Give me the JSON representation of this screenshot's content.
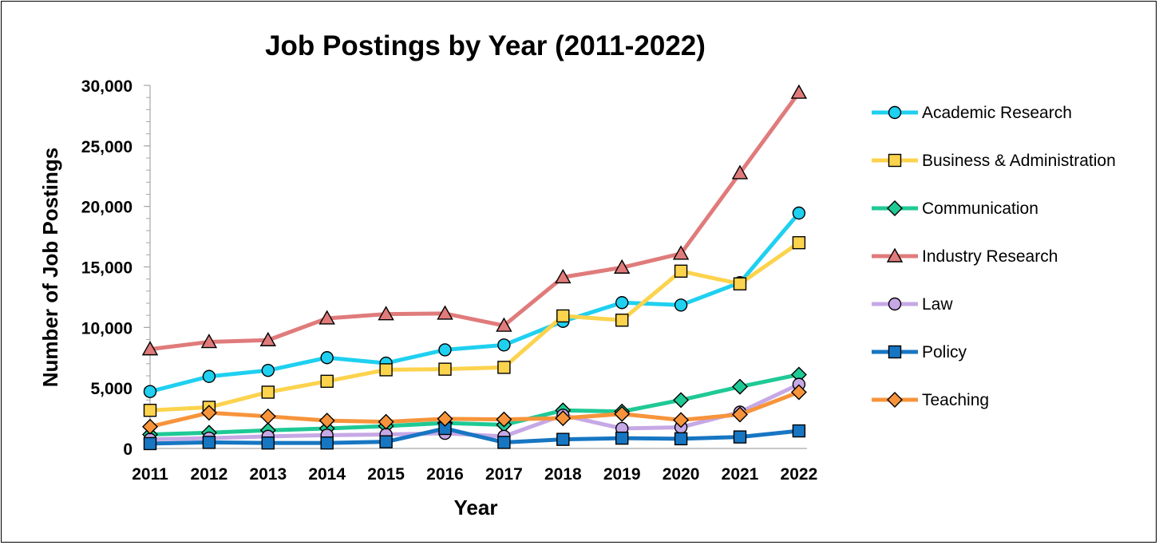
{
  "chart_data": {
    "type": "line",
    "title": "Job Postings by Year (2011-2022)",
    "xlabel": "Year",
    "ylabel": "Number of Job Postings",
    "categories": [
      "2011",
      "2012",
      "2013",
      "2014",
      "2015",
      "2016",
      "2017",
      "2018",
      "2019",
      "2020",
      "2021",
      "2022"
    ],
    "ylim": [
      0,
      30000
    ],
    "yticks": [
      0,
      5000,
      10000,
      15000,
      20000,
      25000,
      30000
    ],
    "ytick_labels": [
      "0",
      "5,000",
      "10,000",
      "15,000",
      "20,000",
      "25,000",
      "30,000"
    ],
    "grid": false,
    "legend_position": "right",
    "series": [
      {
        "name": "Academic Research",
        "color": "#1fd0f0",
        "marker": "circle",
        "values": [
          4700,
          5950,
          6450,
          7500,
          7050,
          8150,
          8550,
          10500,
          12050,
          11850,
          13700,
          19450
        ]
      },
      {
        "name": "Business & Administration",
        "color": "#fcd34d",
        "marker": "square",
        "values": [
          3150,
          3400,
          4650,
          5550,
          6500,
          6550,
          6700,
          10950,
          10600,
          14650,
          13600,
          17000
        ]
      },
      {
        "name": "Communication",
        "color": "#1fc995",
        "marker": "diamond",
        "values": [
          1150,
          1300,
          1500,
          1650,
          1850,
          2100,
          1950,
          3150,
          3050,
          4000,
          5100,
          6100
        ]
      },
      {
        "name": "Industry Research",
        "color": "#e07b7b",
        "marker": "triangle",
        "values": [
          8200,
          8800,
          8950,
          10750,
          11100,
          11150,
          10150,
          14150,
          14950,
          16100,
          22750,
          29400
        ]
      },
      {
        "name": "Law",
        "color": "#c6a8e6",
        "marker": "circle",
        "values": [
          750,
          850,
          1000,
          1100,
          1150,
          1250,
          1000,
          2750,
          1650,
          1750,
          3000,
          5300
        ]
      },
      {
        "name": "Policy",
        "color": "#1776c2",
        "marker": "square",
        "values": [
          400,
          500,
          450,
          450,
          550,
          1650,
          500,
          750,
          850,
          800,
          950,
          1450
        ]
      },
      {
        "name": "Teaching",
        "color": "#f7943b",
        "marker": "diamond",
        "values": [
          1800,
          2950,
          2650,
          2300,
          2200,
          2450,
          2400,
          2500,
          2850,
          2350,
          2800,
          4650
        ]
      }
    ]
  }
}
